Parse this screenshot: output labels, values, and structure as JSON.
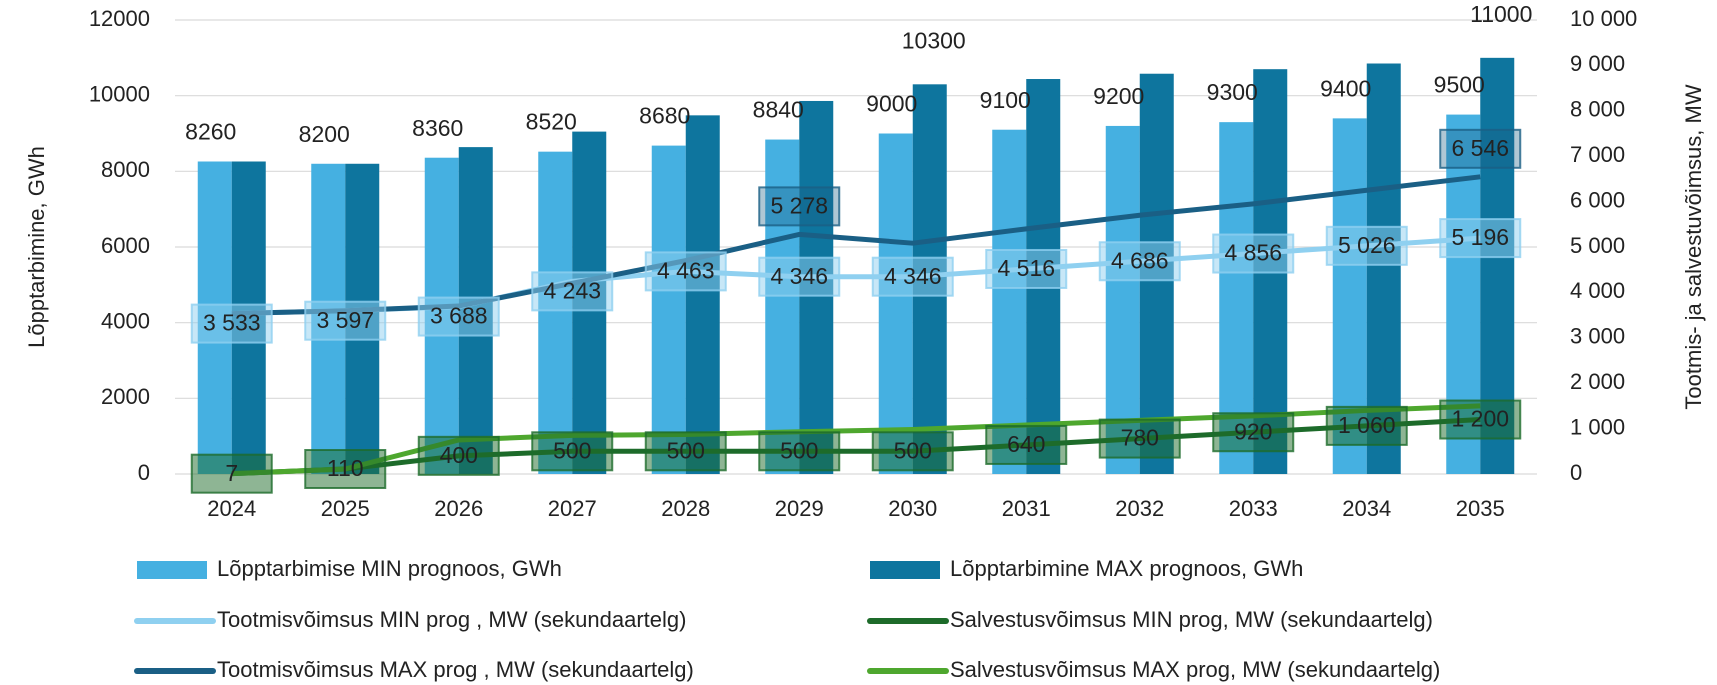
{
  "chart_data": {
    "type": "bar",
    "categories": [
      "2024",
      "2025",
      "2026",
      "2027",
      "2028",
      "2029",
      "2030",
      "2031",
      "2032",
      "2033",
      "2034",
      "2035"
    ],
    "ylabel": "Lõpptarbimine, GWh",
    "y2label": "Tootmis- ja salvestuvõimsus, MW",
    "ylim": [
      0,
      12000
    ],
    "yticks": [
      0,
      2000,
      4000,
      6000,
      8000,
      10000,
      12000
    ],
    "y2lim": [
      0,
      10000
    ],
    "y2ticks": [
      0,
      {
        "value": 1000,
        "label": "1 000"
      },
      {
        "value": 2000,
        "label": "2 000"
      },
      {
        "value": 3000,
        "label": "3 000"
      },
      {
        "value": 4000,
        "label": "4 000"
      },
      {
        "value": 5000,
        "label": "5 000"
      },
      {
        "value": 6000,
        "label": "6 000"
      },
      {
        "value": 7000,
        "label": "7 000"
      },
      {
        "value": 8000,
        "label": "8 000"
      },
      {
        "value": 9000,
        "label": "9 000"
      },
      {
        "value": 10000,
        "label": "10 000"
      }
    ],
    "grid": true,
    "legend": "bottom",
    "series": [
      {
        "name": "Lõpptarbimise MIN prognoos, GWh",
        "type": "bar",
        "color": "#45b0e1",
        "values": [
          8260,
          8200,
          8360,
          8520,
          8680,
          8840,
          9000,
          9100,
          9200,
          9300,
          9400,
          9500
        ],
        "value_labels": [
          "8260",
          "8200",
          "8360",
          "8520",
          "8680",
          "8840",
          "9000",
          "9100",
          "9200",
          "9300",
          "9400",
          "9500"
        ]
      },
      {
        "name": "Lõpptarbimine MAX prognoos, GWh",
        "type": "bar",
        "color": "#0e759e",
        "values": [
          8260,
          8200,
          8640,
          9050,
          9480,
          9860,
          10300,
          10440,
          10580,
          10700,
          10850,
          11000
        ],
        "value_labels": [
          null,
          null,
          null,
          null,
          null,
          null,
          "10300",
          null,
          null,
          null,
          null,
          "11000"
        ]
      },
      {
        "name": "Tootmisvõimsus MIN prog , MW (sekundaartelg)",
        "type": "line",
        "axis": "y2",
        "color": "#8fd0f0",
        "values": [
          3533,
          3597,
          3688,
          4243,
          4463,
          4346,
          4346,
          4516,
          4686,
          4856,
          5026,
          5196
        ],
        "value_labels": [
          "3 533",
          "3 597",
          "3 688",
          "4 243",
          "4 463",
          "4 346",
          "4 346",
          "4 516",
          "4 686",
          "4 856",
          "5 026",
          "5 196"
        ]
      },
      {
        "name": "Salvestusvõimsus MIN prog, MW (sekundaartelg)",
        "type": "line",
        "axis": "y2",
        "color": "#1d6b2a",
        "values": [
          7,
          110,
          400,
          500,
          500,
          500,
          500,
          640,
          780,
          920,
          1060,
          1200
        ],
        "value_labels": [
          "7",
          "110",
          "400",
          "500",
          "500",
          "500",
          "500",
          "640",
          "780",
          "920",
          "1 060",
          "1 200"
        ]
      },
      {
        "name": "Tootmisvõimsus MAX prog , MW (sekundaartelg)",
        "type": "line",
        "axis": "y2",
        "color": "#1a5f85",
        "values": [
          3533,
          3597,
          3700,
          4200,
          4700,
          5278,
          5084,
          5400,
          5700,
          5950,
          6250,
          6546
        ],
        "value_labels": [
          null,
          null,
          null,
          null,
          null,
          "5 278",
          null,
          null,
          null,
          null,
          null,
          "6 546"
        ]
      },
      {
        "name": "Salvestusvõimsus MAX prog, MW (sekundaartelg)",
        "type": "line",
        "axis": "y2",
        "color": "#4ea72e",
        "values": [
          7,
          110,
          750,
          850,
          870,
          930,
          980,
          1080,
          1180,
          1280,
          1400,
          1500
        ]
      }
    ]
  }
}
